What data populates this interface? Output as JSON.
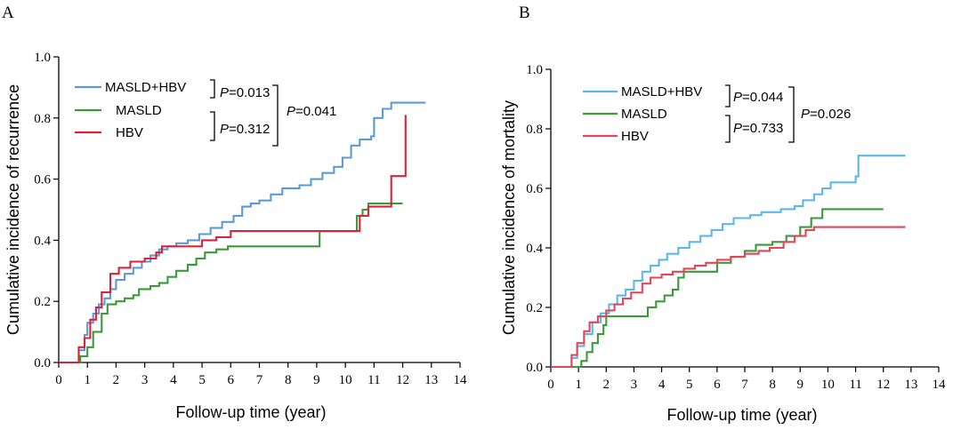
{
  "chart_data": [
    {
      "panel": "A",
      "type": "line",
      "step": true,
      "xlabel": "Follow-up time (year)",
      "ylabel": "Cumulative incidence of recurrence",
      "xlim": [
        0,
        14
      ],
      "ylim": [
        0,
        1.0
      ],
      "x_ticks": [
        "0",
        "1",
        "2",
        "3",
        "4",
        "5",
        "6",
        "7",
        "8",
        "9",
        "10",
        "11",
        "12",
        "13",
        "14"
      ],
      "y_ticks": [
        "0.0",
        "0.2",
        "0.4",
        "0.6",
        "0.8",
        "1.0"
      ],
      "legend": {
        "position": "top-left"
      },
      "pvalues": {
        "p1": {
          "symbol": "P",
          "text": "=0.013"
        },
        "p2": {
          "symbol": "P",
          "text": "=0.312"
        },
        "p3": {
          "symbol": "P",
          "text": "=0.041"
        }
      },
      "series": [
        {
          "name": "MASLD+HBV",
          "color": "#5b9bd5",
          "points": [
            [
              0,
              0
            ],
            [
              0.55,
              0
            ],
            [
              0.7,
              0.04
            ],
            [
              0.9,
              0.09
            ],
            [
              1.0,
              0.13
            ],
            [
              1.2,
              0.16
            ],
            [
              1.4,
              0.19
            ],
            [
              1.6,
              0.21
            ],
            [
              1.8,
              0.24
            ],
            [
              2.0,
              0.27
            ],
            [
              2.3,
              0.29
            ],
            [
              2.6,
              0.31
            ],
            [
              2.9,
              0.33
            ],
            [
              3.2,
              0.35
            ],
            [
              3.5,
              0.37
            ],
            [
              3.8,
              0.38
            ],
            [
              4.1,
              0.39
            ],
            [
              4.5,
              0.4
            ],
            [
              4.9,
              0.42
            ],
            [
              5.3,
              0.44
            ],
            [
              5.7,
              0.46
            ],
            [
              6.1,
              0.48
            ],
            [
              6.4,
              0.51
            ],
            [
              6.7,
              0.52
            ],
            [
              7.0,
              0.53
            ],
            [
              7.4,
              0.55
            ],
            [
              7.8,
              0.57
            ],
            [
              8.4,
              0.58
            ],
            [
              8.8,
              0.6
            ],
            [
              9.2,
              0.62
            ],
            [
              9.6,
              0.64
            ],
            [
              9.9,
              0.67
            ],
            [
              10.2,
              0.71
            ],
            [
              10.5,
              0.73
            ],
            [
              10.9,
              0.74
            ],
            [
              11.0,
              0.8
            ],
            [
              11.3,
              0.83
            ],
            [
              11.6,
              0.85
            ],
            [
              12.8,
              0.85
            ]
          ]
        },
        {
          "name": "MASLD",
          "color": "#3a9a3a",
          "points": [
            [
              0,
              0
            ],
            [
              0.55,
              0
            ],
            [
              0.75,
              0.02
            ],
            [
              1.0,
              0.05
            ],
            [
              1.2,
              0.1
            ],
            [
              1.5,
              0.16
            ],
            [
              1.7,
              0.19
            ],
            [
              2.0,
              0.2
            ],
            [
              2.3,
              0.21
            ],
            [
              2.6,
              0.22
            ],
            [
              2.8,
              0.24
            ],
            [
              3.2,
              0.25
            ],
            [
              3.5,
              0.26
            ],
            [
              3.8,
              0.28
            ],
            [
              4.1,
              0.3
            ],
            [
              4.5,
              0.32
            ],
            [
              4.8,
              0.34
            ],
            [
              5.1,
              0.36
            ],
            [
              5.5,
              0.37
            ],
            [
              5.9,
              0.38
            ],
            [
              9.0,
              0.38
            ],
            [
              9.1,
              0.43
            ],
            [
              10.3,
              0.43
            ],
            [
              10.4,
              0.48
            ],
            [
              10.6,
              0.5
            ],
            [
              10.8,
              0.52
            ],
            [
              12.0,
              0.52
            ]
          ]
        },
        {
          "name": "HBV",
          "color": "#d6253a",
          "points": [
            [
              0,
              0
            ],
            [
              0.55,
              0
            ],
            [
              0.7,
              0.05
            ],
            [
              0.9,
              0.08
            ],
            [
              1.1,
              0.14
            ],
            [
              1.3,
              0.18
            ],
            [
              1.5,
              0.23
            ],
            [
              1.8,
              0.29
            ],
            [
              2.1,
              0.31
            ],
            [
              2.5,
              0.33
            ],
            [
              3.0,
              0.34
            ],
            [
              3.4,
              0.36
            ],
            [
              3.6,
              0.38
            ],
            [
              4.8,
              0.38
            ],
            [
              5.0,
              0.4
            ],
            [
              5.5,
              0.41
            ],
            [
              6.0,
              0.43
            ],
            [
              9.0,
              0.43
            ],
            [
              10.4,
              0.43
            ],
            [
              10.5,
              0.48
            ],
            [
              10.8,
              0.51
            ],
            [
              11.5,
              0.51
            ],
            [
              11.6,
              0.61
            ],
            [
              12.0,
              0.61
            ],
            [
              12.1,
              0.81
            ]
          ]
        }
      ]
    },
    {
      "panel": "B",
      "type": "line",
      "step": true,
      "xlabel": "Follow-up time (year)",
      "ylabel": "Cumulative incidence of  mortality",
      "xlim": [
        0,
        14
      ],
      "ylim": [
        0,
        1.0
      ],
      "x_ticks": [
        "0",
        "1",
        "2",
        "3",
        "4",
        "5",
        "6",
        "7",
        "8",
        "9",
        "10",
        "11",
        "12",
        "13",
        "14"
      ],
      "y_ticks": [
        "0.0",
        "0.2",
        "0.4",
        "0.6",
        "0.8",
        "1.0"
      ],
      "legend": {
        "position": "top-left"
      },
      "pvalues": {
        "p1": {
          "symbol": "P",
          "text": "=0.044"
        },
        "p2": {
          "symbol": "P",
          "text": "=0.733"
        },
        "p3": {
          "symbol": "P",
          "text": "=0.026"
        }
      },
      "series": [
        {
          "name": "MASLD+HBV",
          "color": "#5bb8e8",
          "points": [
            [
              0,
              0
            ],
            [
              0.55,
              0
            ],
            [
              0.75,
              0.03
            ],
            [
              0.95,
              0.07
            ],
            [
              1.2,
              0.11
            ],
            [
              1.5,
              0.15
            ],
            [
              1.8,
              0.18
            ],
            [
              2.1,
              0.21
            ],
            [
              2.4,
              0.24
            ],
            [
              2.7,
              0.26
            ],
            [
              3.0,
              0.29
            ],
            [
              3.3,
              0.32
            ],
            [
              3.6,
              0.34
            ],
            [
              3.9,
              0.36
            ],
            [
              4.2,
              0.38
            ],
            [
              4.6,
              0.4
            ],
            [
              5.0,
              0.42
            ],
            [
              5.4,
              0.44
            ],
            [
              5.8,
              0.46
            ],
            [
              6.2,
              0.48
            ],
            [
              6.6,
              0.5
            ],
            [
              7.2,
              0.51
            ],
            [
              7.6,
              0.52
            ],
            [
              8.3,
              0.53
            ],
            [
              8.8,
              0.54
            ],
            [
              9.1,
              0.56
            ],
            [
              9.5,
              0.58
            ],
            [
              9.8,
              0.6
            ],
            [
              10.1,
              0.62
            ],
            [
              10.9,
              0.62
            ],
            [
              11.0,
              0.64
            ],
            [
              11.1,
              0.71
            ],
            [
              12.8,
              0.71
            ]
          ]
        },
        {
          "name": "MASLD",
          "color": "#3a9a3a",
          "points": [
            [
              0,
              0
            ],
            [
              1.0,
              0
            ],
            [
              1.1,
              0.02
            ],
            [
              1.3,
              0.05
            ],
            [
              1.5,
              0.08
            ],
            [
              1.7,
              0.11
            ],
            [
              1.9,
              0.14
            ],
            [
              2.0,
              0.17
            ],
            [
              3.3,
              0.17
            ],
            [
              3.5,
              0.2
            ],
            [
              3.8,
              0.22
            ],
            [
              4.1,
              0.24
            ],
            [
              4.4,
              0.26
            ],
            [
              4.6,
              0.3
            ],
            [
              4.8,
              0.32
            ],
            [
              5.9,
              0.32
            ],
            [
              6.0,
              0.35
            ],
            [
              6.5,
              0.37
            ],
            [
              7.0,
              0.39
            ],
            [
              7.4,
              0.41
            ],
            [
              8.0,
              0.42
            ],
            [
              8.5,
              0.44
            ],
            [
              9.0,
              0.47
            ],
            [
              9.4,
              0.5
            ],
            [
              9.8,
              0.53
            ],
            [
              12.0,
              0.53
            ]
          ]
        },
        {
          "name": "HBV",
          "color": "#e0485a",
          "points": [
            [
              0,
              0
            ],
            [
              0.55,
              0
            ],
            [
              0.75,
              0.04
            ],
            [
              0.95,
              0.08
            ],
            [
              1.2,
              0.12
            ],
            [
              1.4,
              0.15
            ],
            [
              1.7,
              0.17
            ],
            [
              2.0,
              0.19
            ],
            [
              2.3,
              0.21
            ],
            [
              2.6,
              0.23
            ],
            [
              2.9,
              0.25
            ],
            [
              3.3,
              0.28
            ],
            [
              3.6,
              0.3
            ],
            [
              4.0,
              0.31
            ],
            [
              4.4,
              0.32
            ],
            [
              4.8,
              0.33
            ],
            [
              5.2,
              0.34
            ],
            [
              5.6,
              0.35
            ],
            [
              6.0,
              0.36
            ],
            [
              6.5,
              0.37
            ],
            [
              7.0,
              0.38
            ],
            [
              7.5,
              0.39
            ],
            [
              7.9,
              0.4
            ],
            [
              8.4,
              0.42
            ],
            [
              8.8,
              0.44
            ],
            [
              9.2,
              0.46
            ],
            [
              9.5,
              0.47
            ],
            [
              12.8,
              0.47
            ]
          ]
        }
      ]
    }
  ]
}
